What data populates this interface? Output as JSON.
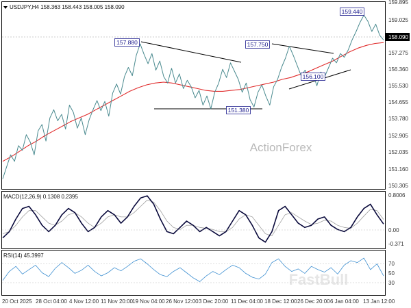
{
  "chart_data": {
    "type": "line",
    "symbol": "USDJPY,H4",
    "ohlc_header": "158.363 158.443 158.005 158.090",
    "title": "USDJPY,H4 158.363 158.443 158.005 158.090",
    "watermark_main": "ActionForex",
    "watermark_secondary": "FastBull",
    "grid": false,
    "price_panel": {
      "y_ticks": [
        "159.895",
        "159.025",
        "158.090",
        "157.275",
        "156.360",
        "155.530",
        "154.655",
        "153.780",
        "152.905",
        "152.035",
        "151.160",
        "150.305"
      ],
      "y_range": [
        150.0,
        160.15
      ],
      "current_price": "158.090",
      "series": [
        {
          "name": "USDJPY",
          "color": "#4a8a8f",
          "values": [
            150.55,
            151.2,
            151.85,
            151.5,
            152.35,
            152.1,
            152.95,
            152.55,
            151.85,
            153.15,
            153.5,
            152.6,
            153.85,
            154.3,
            153.7,
            154.05,
            153.25,
            154.55,
            154.15,
            153.3,
            153.85,
            152.95,
            153.75,
            154.3,
            154.8,
            154.25,
            154.75,
            153.95,
            155.2,
            155.7,
            155.15,
            156.1,
            156.6,
            156.15,
            157.25,
            157.88,
            157.3,
            156.8,
            157.35,
            156.45,
            156.95,
            156.1,
            155.75,
            156.55,
            155.75,
            156.25,
            155.45,
            155.9,
            155.55,
            154.95,
            155.35,
            154.55,
            155.05,
            154.35,
            155.25,
            155.75,
            156.5,
            156.05,
            156.85,
            156.4,
            155.95,
            155.25,
            155.75,
            154.85,
            154.45,
            155.25,
            155.65,
            155.05,
            154.55,
            155.55,
            155.95,
            156.6,
            157.1,
            157.75,
            157.25,
            156.7,
            156.15,
            156.45,
            155.95,
            156.25,
            155.6,
            156.35,
            156.1,
            156.6,
            157.1,
            156.85,
            157.35,
            157.15,
            157.55,
            158.1,
            158.55,
            159.05,
            159.44,
            159.1,
            158.55,
            158.95,
            158.35,
            158.09
          ]
        },
        {
          "name": "MA",
          "color": "#e02a2a",
          "values": [
            151.5,
            151.75,
            152.05,
            152.35,
            152.6,
            152.9,
            153.15,
            153.4,
            153.65,
            153.85,
            154.05,
            154.3,
            154.55,
            154.8,
            155.05,
            155.3,
            155.5,
            155.65,
            155.75,
            155.8,
            155.75,
            155.65,
            155.55,
            155.45,
            155.35,
            155.3,
            155.3,
            155.35,
            155.4,
            155.5,
            155.6,
            155.7,
            155.8,
            155.95,
            156.05,
            156.2,
            156.35,
            156.55,
            156.75,
            156.95,
            157.2,
            157.45,
            157.65,
            157.8,
            157.9,
            157.95
          ]
        }
      ],
      "labels": [
        "157.880",
        "157.750",
        "159.440",
        "151.380",
        "156.100"
      ]
    },
    "macd_panel": {
      "title": "MACD(12,26,9) 0.1308 0.2395",
      "y_ticks": [
        "0.8006",
        "0.00",
        "-0.371"
      ],
      "y_range": [
        -0.45,
        0.9
      ],
      "series": [
        {
          "name": "MACD",
          "color": "#0a0a3c",
          "values": [
            -0.2,
            -0.05,
            0.25,
            0.5,
            0.55,
            0.35,
            0.1,
            -0.05,
            0.1,
            0.35,
            0.5,
            0.4,
            0.15,
            -0.05,
            0.05,
            0.3,
            0.45,
            0.35,
            0.15,
            0.3,
            0.55,
            0.75,
            0.8,
            0.6,
            0.25,
            -0.05,
            -0.1,
            0.05,
            0.2,
            0.1,
            -0.05,
            0.05,
            -0.05,
            -0.15,
            -0.05,
            0.2,
            0.45,
            0.35,
            0.1,
            -0.2,
            -0.3,
            -0.05,
            0.45,
            0.55,
            0.35,
            0.15,
            0.05,
            0.1,
            0.25,
            0.3,
            0.1,
            0.0,
            -0.05,
            0.05,
            0.3,
            0.5,
            0.6,
            0.35,
            0.13
          ]
        },
        {
          "name": "Signal",
          "color": "#a0a0a0",
          "values": [
            -0.1,
            -0.05,
            0.1,
            0.3,
            0.45,
            0.45,
            0.3,
            0.15,
            0.1,
            0.2,
            0.35,
            0.4,
            0.3,
            0.15,
            0.05,
            0.15,
            0.3,
            0.35,
            0.3,
            0.3,
            0.4,
            0.55,
            0.7,
            0.65,
            0.45,
            0.2,
            0.05,
            0.0,
            0.1,
            0.1,
            0.05,
            0.03,
            0.0,
            -0.05,
            -0.05,
            0.05,
            0.25,
            0.35,
            0.3,
            0.1,
            -0.1,
            -0.15,
            0.1,
            0.35,
            0.4,
            0.3,
            0.2,
            0.12,
            0.15,
            0.22,
            0.2,
            0.1,
            0.05,
            0.03,
            0.15,
            0.32,
            0.48,
            0.45,
            0.24
          ]
        }
      ]
    },
    "rsi_panel": {
      "title": "RSI(14) 45.3997",
      "y_ticks": [
        "70",
        "50",
        "30"
      ],
      "y_range": [
        15,
        85
      ],
      "series": [
        {
          "name": "RSI",
          "color": "#3d8fd1",
          "values": [
            38,
            52,
            60,
            48,
            55,
            62,
            50,
            44,
            57,
            66,
            58,
            49,
            54,
            62,
            52,
            45,
            50,
            58,
            53,
            60,
            68,
            72,
            64,
            55,
            47,
            44,
            52,
            58,
            50,
            42,
            36,
            45,
            52,
            47,
            55,
            62,
            58,
            49,
            43,
            40,
            48,
            66,
            72,
            60,
            52,
            56,
            49,
            60,
            55,
            51,
            58,
            48,
            62,
            69,
            66,
            73,
            55,
            64,
            45
          ]
        }
      ]
    },
    "x_ticks": [
      "20 Oct 2025",
      "28 Oct 04:00",
      "4 Nov 12:00",
      "11 Nov 20:00",
      "19 Nov 04:00",
      "26 Nov 12:00",
      "3 Dec 20:00",
      "11 Dec 04:00",
      "18 Dec 12:00",
      "26 Dec 20:00",
      "6 Jan 04:00",
      "13 Jan 12:00"
    ]
  }
}
